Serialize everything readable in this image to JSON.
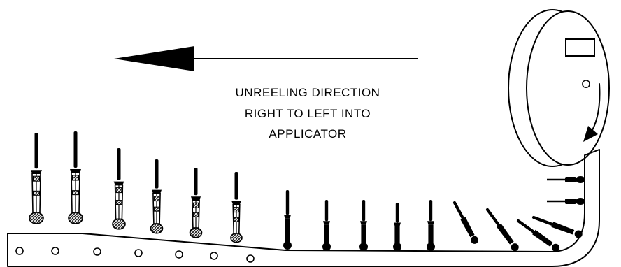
{
  "caption": {
    "line1": "UNREELING DIRECTION",
    "line2": "RIGHT TO LEFT INTO",
    "line3": "APPLICATOR"
  },
  "reel": {
    "center_marking": "O"
  },
  "colors": {
    "line": "#000000",
    "background": "#ffffff"
  }
}
